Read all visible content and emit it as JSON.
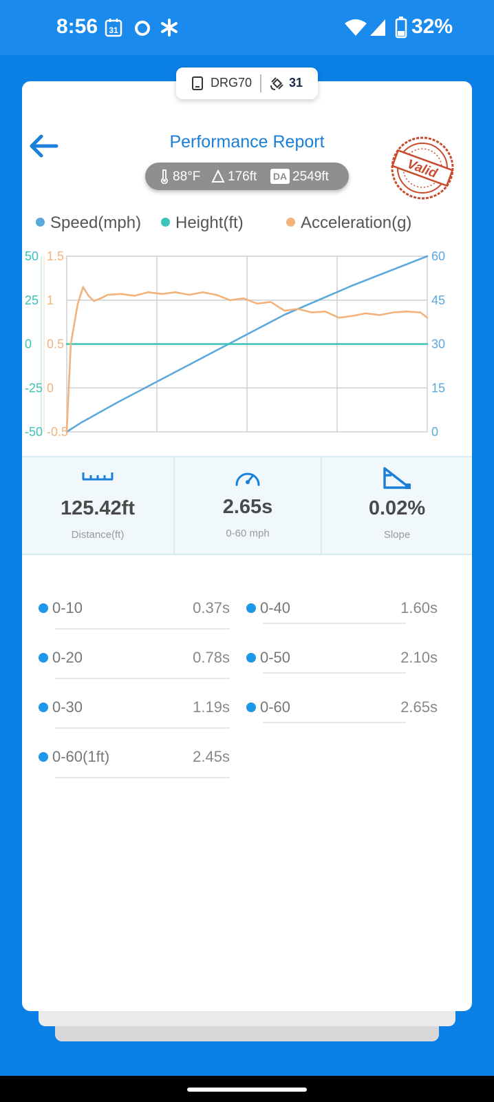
{
  "status_bar": {
    "time": "8:56",
    "calendar_day": "31",
    "battery": "32%",
    "icons": [
      "calendar-icon",
      "circle-notification-icon",
      "asterisk-icon",
      "wifi-icon",
      "signal-icon",
      "battery-icon"
    ]
  },
  "device": {
    "name": "DRG70",
    "satellites": "31"
  },
  "header": {
    "title": "Performance Report"
  },
  "conditions": {
    "temperature": "88°F",
    "altitude": "176ft",
    "da_badge": "DA",
    "density_altitude": "2549ft"
  },
  "stamp": {
    "text": "Valid",
    "color": "#c94a2c"
  },
  "legend": [
    {
      "label": "Speed(mph)",
      "color": "#5aa9dc"
    },
    {
      "label": "Height(ft)",
      "color": "#38c4b6"
    },
    {
      "label": "Acceleration(g)",
      "color": "#f2b27c"
    }
  ],
  "chart_data": {
    "type": "line",
    "x_range": [
      0,
      2.65
    ],
    "axes": {
      "height_axis": {
        "ticks": [
          "50",
          "25",
          "0",
          "-25",
          "-50"
        ],
        "range": [
          -50,
          50
        ],
        "color": "#38c4b6"
      },
      "accel_axis": {
        "ticks": [
          "1.5",
          "1",
          "0.5",
          "0",
          "-0.5"
        ],
        "range": [
          -0.5,
          1.5
        ],
        "color": "#f2b27c"
      },
      "speed_axis": {
        "ticks": [
          "60",
          "45",
          "30",
          "15",
          "0"
        ],
        "range": [
          0,
          60
        ],
        "color": "#5aa9dc"
      }
    },
    "grid": true,
    "series": [
      {
        "name": "Speed(mph)",
        "axis": "speed_axis",
        "color": "#5aa9dc",
        "x": [
          0,
          0.1,
          0.37,
          0.78,
          1.19,
          1.6,
          2.1,
          2.65
        ],
        "y": [
          0,
          3,
          10,
          20,
          30,
          40,
          50,
          60
        ]
      },
      {
        "name": "Height(ft)",
        "axis": "height_axis",
        "color": "#38c4b6",
        "x": [
          0,
          2.65
        ],
        "y": [
          0,
          0
        ]
      },
      {
        "name": "Acceleration(g)",
        "axis": "accel_axis",
        "color": "#f2b27c",
        "x": [
          0,
          0.03,
          0.08,
          0.12,
          0.16,
          0.2,
          0.25,
          0.3,
          0.4,
          0.5,
          0.6,
          0.7,
          0.8,
          0.9,
          1.0,
          1.1,
          1.2,
          1.3,
          1.4,
          1.5,
          1.6,
          1.7,
          1.8,
          1.9,
          2.0,
          2.1,
          2.2,
          2.3,
          2.4,
          2.5,
          2.6,
          2.65
        ],
        "y": [
          -0.5,
          0.5,
          0.95,
          1.15,
          1.05,
          0.99,
          1.02,
          1.06,
          1.07,
          1.05,
          1.09,
          1.07,
          1.09,
          1.06,
          1.09,
          1.06,
          1.0,
          1.02,
          0.96,
          0.98,
          0.88,
          0.9,
          0.86,
          0.87,
          0.8,
          0.82,
          0.85,
          0.83,
          0.86,
          0.87,
          0.86,
          0.8
        ]
      }
    ]
  },
  "stats": [
    {
      "value": "125.42ft",
      "label": "Distance(ft)",
      "icon": "ruler-icon"
    },
    {
      "value": "2.65s",
      "label": "0-60 mph",
      "icon": "speedometer-icon"
    },
    {
      "value": "0.02%",
      "label": "Slope",
      "icon": "slope-icon"
    }
  ],
  "splits": [
    {
      "name": "0-10",
      "time": "0.37s"
    },
    {
      "name": "0-40",
      "time": "1.60s"
    },
    {
      "name": "0-20",
      "time": "0.78s"
    },
    {
      "name": "0-50",
      "time": "2.10s"
    },
    {
      "name": "0-30",
      "time": "1.19s"
    },
    {
      "name": "0-60",
      "time": "2.65s"
    },
    {
      "name": "0-60(1ft)",
      "time": "2.45s"
    }
  ]
}
